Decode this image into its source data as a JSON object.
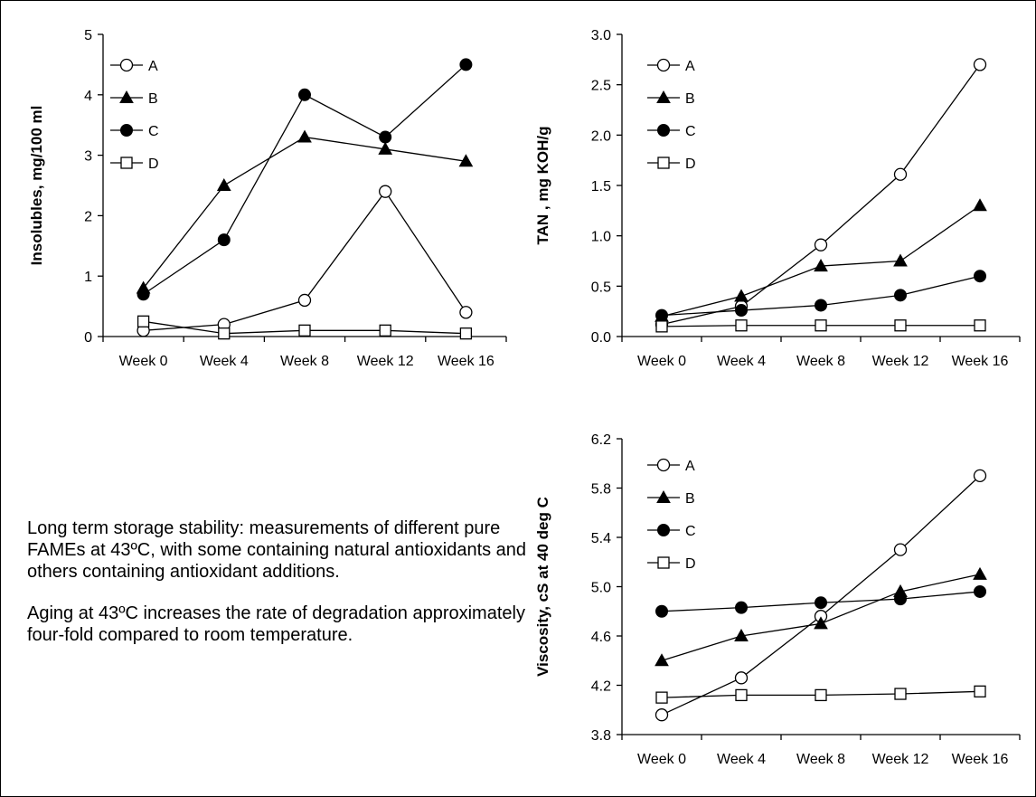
{
  "chart_data": [
    {
      "type": "line",
      "categories": [
        "Week 0",
        "Week 4",
        "Week 8",
        "Week 12",
        "Week 16"
      ],
      "ylabel": "Insolubles, mg/100 ml",
      "ylim": [
        0,
        5
      ],
      "yticks": [
        "0",
        "1",
        "2",
        "3",
        "4",
        "5"
      ],
      "legend_position": "top-left",
      "series": [
        {
          "name": "A",
          "marker": "circle-open",
          "values": [
            0.1,
            0.2,
            0.6,
            2.4,
            0.4
          ]
        },
        {
          "name": "B",
          "marker": "triangle-filled",
          "values": [
            0.8,
            2.5,
            3.3,
            3.1,
            2.9
          ]
        },
        {
          "name": "C",
          "marker": "circle-filled",
          "values": [
            0.7,
            1.6,
            4.0,
            3.3,
            4.5
          ]
        },
        {
          "name": "D",
          "marker": "square-open",
          "values": [
            0.25,
            0.05,
            0.1,
            0.1,
            0.05
          ]
        }
      ]
    },
    {
      "type": "line",
      "categories": [
        "Week 0",
        "Week 4",
        "Week 8",
        "Week 12",
        "Week 16"
      ],
      "ylabel": "TAN , mg KOH/g",
      "ylim": [
        0,
        3
      ],
      "yticks": [
        "0.0",
        "0.5",
        "1.0",
        "1.5",
        "2.0",
        "2.5",
        "3.0"
      ],
      "legend_position": "top-left",
      "series": [
        {
          "name": "A",
          "marker": "circle-open",
          "values": [
            0.12,
            0.3,
            0.91,
            1.61,
            2.7
          ]
        },
        {
          "name": "B",
          "marker": "triangle-filled",
          "values": [
            0.2,
            0.4,
            0.7,
            0.75,
            1.3
          ]
        },
        {
          "name": "C",
          "marker": "circle-filled",
          "values": [
            0.21,
            0.26,
            0.31,
            0.41,
            0.6
          ]
        },
        {
          "name": "D",
          "marker": "square-open",
          "values": [
            0.1,
            0.11,
            0.11,
            0.11,
            0.11
          ]
        }
      ]
    },
    {
      "type": "line",
      "categories": [
        "Week 0",
        "Week 4",
        "Week 8",
        "Week 12",
        "Week 16"
      ],
      "ylabel": "Viscosity, cS at 40 deg C",
      "ylim": [
        3.8,
        6.2
      ],
      "yticks": [
        "3.8",
        "4.2",
        "4.6",
        "5.0",
        "5.4",
        "5.8",
        "6.2"
      ],
      "legend_position": "top-left",
      "series": [
        {
          "name": "A",
          "marker": "circle-open",
          "values": [
            3.96,
            4.26,
            4.76,
            5.3,
            5.9
          ]
        },
        {
          "name": "B",
          "marker": "triangle-filled",
          "values": [
            4.4,
            4.6,
            4.7,
            4.96,
            5.1
          ]
        },
        {
          "name": "C",
          "marker": "circle-filled",
          "values": [
            4.8,
            4.83,
            4.87,
            4.9,
            4.96
          ]
        },
        {
          "name": "D",
          "marker": "square-open",
          "values": [
            4.1,
            4.12,
            4.12,
            4.13,
            4.15
          ]
        }
      ]
    }
  ],
  "notes": {
    "paragraph1": "Long term storage stability: measurements of different pure FAMEs at 43ºC, with some containing natural antioxidants and others containing antioxidant additions.",
    "paragraph2": "Aging at 43ºC increases the rate of degradation approximately four-fold compared to room temperature."
  }
}
